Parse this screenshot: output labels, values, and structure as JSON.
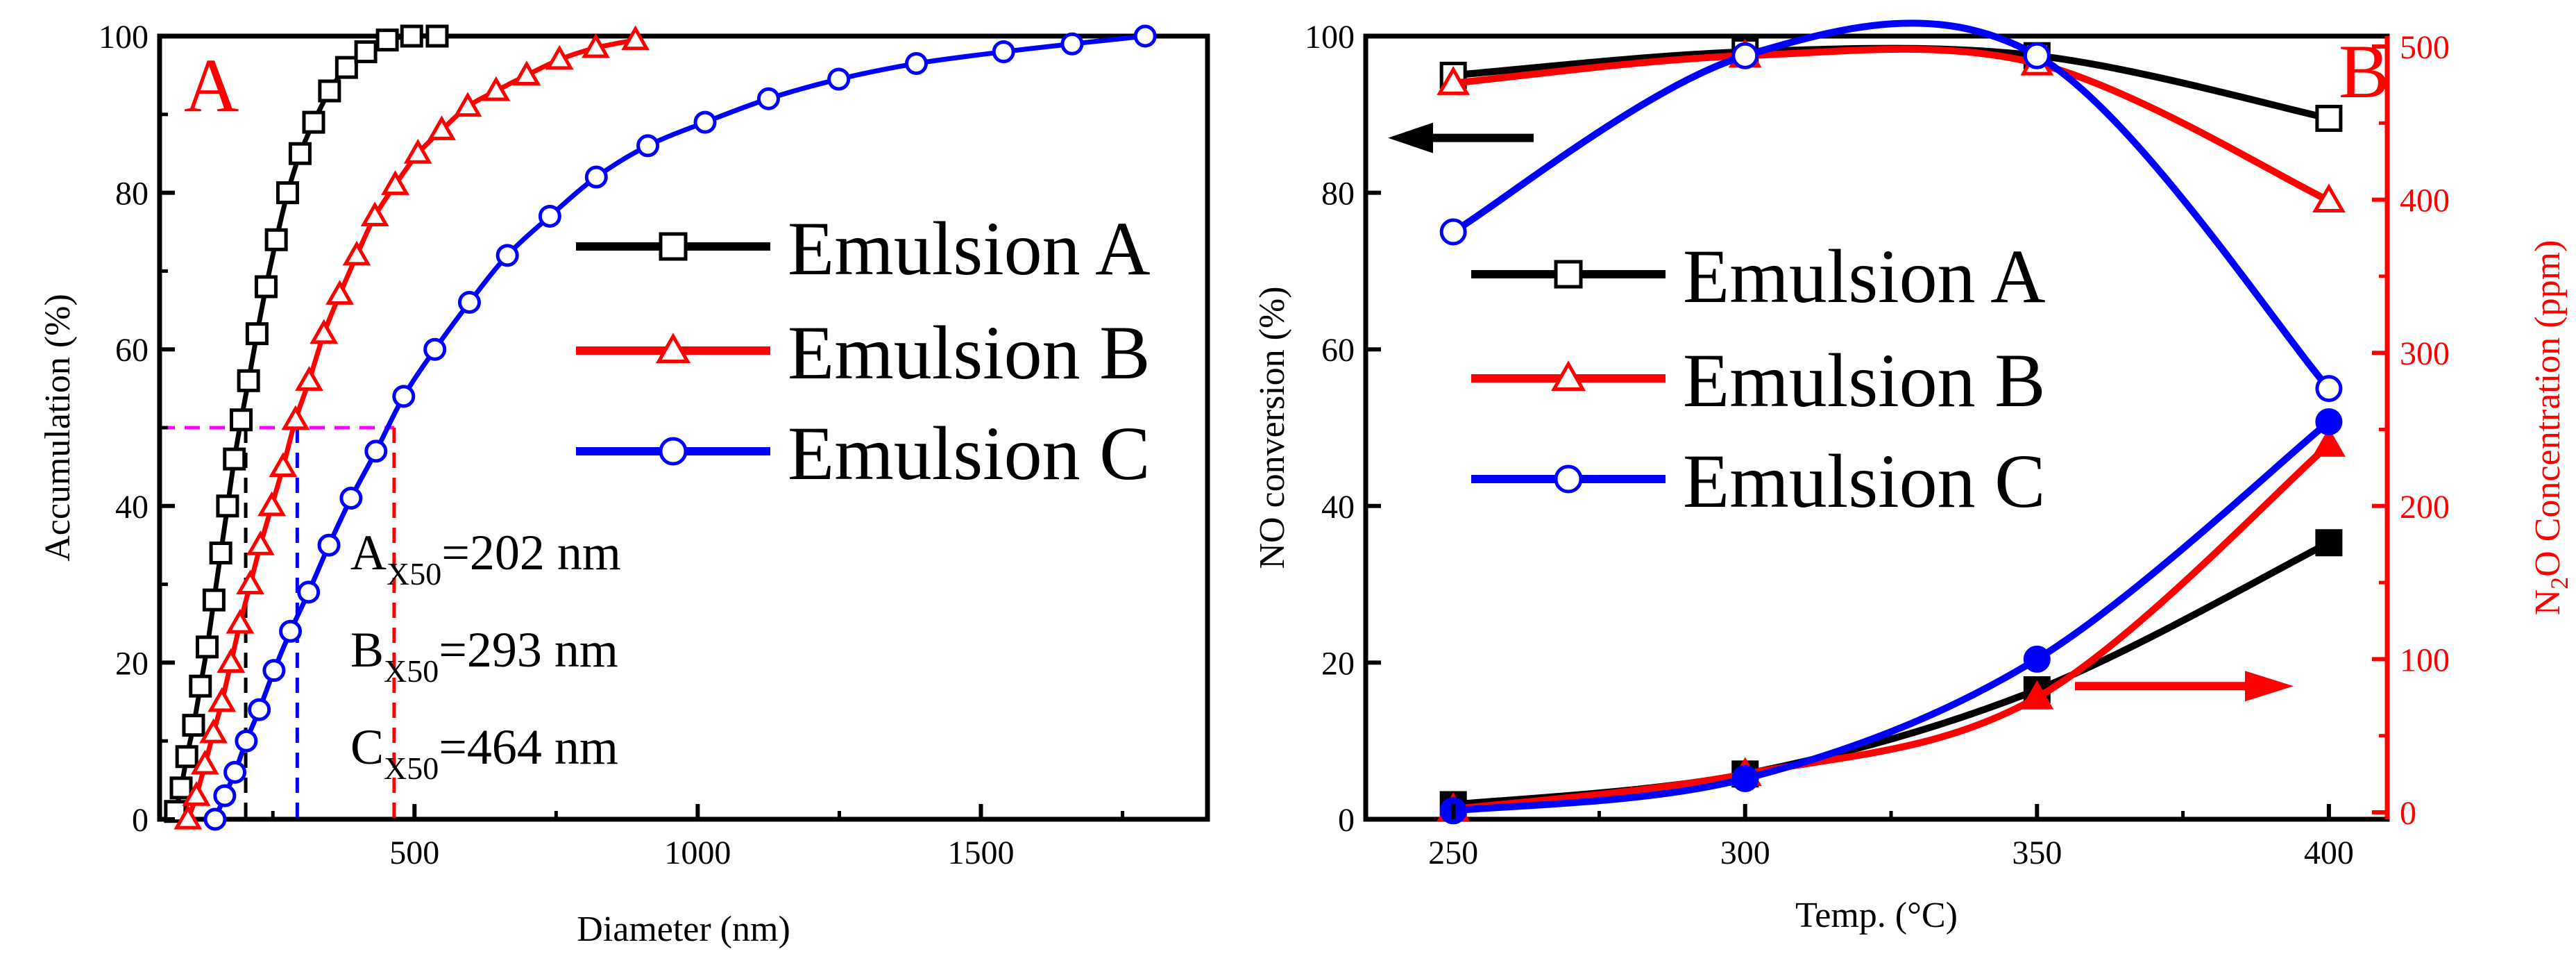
{
  "chart_data": [
    {
      "panel": "A",
      "type": "line",
      "panel_label": "A",
      "xlabel": "Diameter (nm)",
      "ylabel": "Accumulation (%)",
      "xlim": [
        50,
        1900
      ],
      "ylim": [
        0,
        100
      ],
      "xticks": [
        500,
        1000,
        1500
      ],
      "yticks": [
        0,
        20,
        40,
        60,
        80,
        100
      ],
      "series": [
        {
          "name": "Emulsion A",
          "color": "#000000",
          "marker": "square",
          "points": [
            [
              78,
              1
            ],
            [
              88,
              4
            ],
            [
              98,
              8
            ],
            [
              110,
              12
            ],
            [
              122,
              17
            ],
            [
              134,
              22
            ],
            [
              146,
              28
            ],
            [
              158,
              34
            ],
            [
              170,
              40
            ],
            [
              182,
              46
            ],
            [
              194,
              51
            ],
            [
              207,
              56
            ],
            [
              222,
              62
            ],
            [
              238,
              68
            ],
            [
              256,
              74
            ],
            [
              276,
              80
            ],
            [
              298,
              85
            ],
            [
              322,
              89
            ],
            [
              350,
              93
            ],
            [
              380,
              96
            ],
            [
              414,
              98
            ],
            [
              452,
              99.5
            ],
            [
              495,
              100
            ],
            [
              540,
              100
            ]
          ]
        },
        {
          "name": "Emulsion B",
          "color": "#ff0000",
          "marker": "triangle",
          "points": [
            [
              100,
              0
            ],
            [
              115,
              3
            ],
            [
              130,
              7
            ],
            [
              145,
              11
            ],
            [
              160,
              15
            ],
            [
              176,
              20
            ],
            [
              192,
              25
            ],
            [
              210,
              30
            ],
            [
              228,
              35
            ],
            [
              248,
              40
            ],
            [
              268,
              45
            ],
            [
              290,
              51
            ],
            [
              314,
              56
            ],
            [
              340,
              62
            ],
            [
              368,
              67
            ],
            [
              398,
              72
            ],
            [
              430,
              77
            ],
            [
              466,
              81
            ],
            [
              506,
              85
            ],
            [
              548,
              88
            ],
            [
              594,
              91
            ],
            [
              644,
              93
            ],
            [
              698,
              95
            ],
            [
              756,
              97
            ],
            [
              820,
              98.5
            ],
            [
              890,
              99.5
            ]
          ]
        },
        {
          "name": "Emulsion C",
          "color": "#0000ff",
          "marker": "circle",
          "points": [
            [
              148,
              0
            ],
            [
              165,
              3
            ],
            [
              183,
              6
            ],
            [
              203,
              10
            ],
            [
              226,
              14
            ],
            [
              252,
              19
            ],
            [
              281,
              24
            ],
            [
              313,
              29
            ],
            [
              349,
              35
            ],
            [
              388,
              41
            ],
            [
              432,
              47
            ],
            [
              481,
              54
            ],
            [
              536,
              60
            ],
            [
              597,
              66
            ],
            [
              664,
              72
            ],
            [
              739,
              77
            ],
            [
              821,
              82
            ],
            [
              912,
              86
            ],
            [
              1013,
              89
            ],
            [
              1125,
              92
            ],
            [
              1249,
              94.5
            ],
            [
              1386,
              96.5
            ],
            [
              1540,
              98
            ],
            [
              1661,
              99
            ],
            [
              1790,
              100
            ]
          ]
        }
      ],
      "median_lines": {
        "y": 50,
        "x_values": [
          202,
          293,
          464
        ]
      },
      "annotations": [
        {
          "main": "A",
          "sub": "X50",
          "value": "=202 nm"
        },
        {
          "main": "B",
          "sub": "X50",
          "value": "=293 nm"
        },
        {
          "main": "C",
          "sub": "X50",
          "value": "=464 nm"
        }
      ]
    },
    {
      "panel": "B",
      "type": "line",
      "panel_label": "B",
      "xlabel": "Temp. (°C)",
      "ylabel_left": "NO conversion (%)",
      "ylabel_right_parts": [
        "N",
        "2",
        "O Concentration (ppm)"
      ],
      "xlim": [
        235,
        410
      ],
      "ylim_left": [
        0,
        100
      ],
      "ylim_right": [
        0,
        500
      ],
      "xticks": [
        250,
        300,
        350,
        400
      ],
      "yticks_left": [
        0,
        20,
        40,
        60,
        80,
        100
      ],
      "yticks_right": [
        0,
        100,
        200,
        300,
        400,
        500
      ],
      "no_conversion": [
        {
          "name": "Emulsion A",
          "color": "#000000",
          "marker": "square",
          "x": [
            250,
            300,
            350,
            400
          ],
          "y": [
            95,
            98,
            97.5,
            89.5
          ]
        },
        {
          "name": "Emulsion B",
          "color": "#ff0000",
          "marker": "triangle",
          "x": [
            250,
            300,
            350,
            400
          ],
          "y": [
            94,
            97.5,
            96.5,
            79
          ]
        },
        {
          "name": "Emulsion C",
          "color": "#0000ff",
          "marker": "circle",
          "x": [
            250,
            300,
            350,
            400
          ],
          "y": [
            75,
            97.5,
            97.5,
            55
          ]
        }
      ],
      "n2o_concentration": [
        {
          "name": "Emulsion A",
          "color": "#000000",
          "marker": "square",
          "x": [
            250,
            300,
            350,
            400
          ],
          "y": [
            5,
            25,
            80,
            176
          ]
        },
        {
          "name": "Emulsion B",
          "color": "#ff0000",
          "marker": "triangle",
          "x": [
            250,
            300,
            350,
            400
          ],
          "y": [
            2,
            25,
            75,
            240
          ]
        },
        {
          "name": "Emulsion C",
          "color": "#0000ff",
          "marker": "circle",
          "x": [
            250,
            300,
            350,
            400
          ],
          "y": [
            1,
            22,
            100,
            255
          ]
        }
      ],
      "arrows": [
        {
          "axis": "left",
          "direction": "left",
          "color": "#000000"
        },
        {
          "axis": "right",
          "direction": "right",
          "color": "#ff0000"
        }
      ]
    }
  ]
}
